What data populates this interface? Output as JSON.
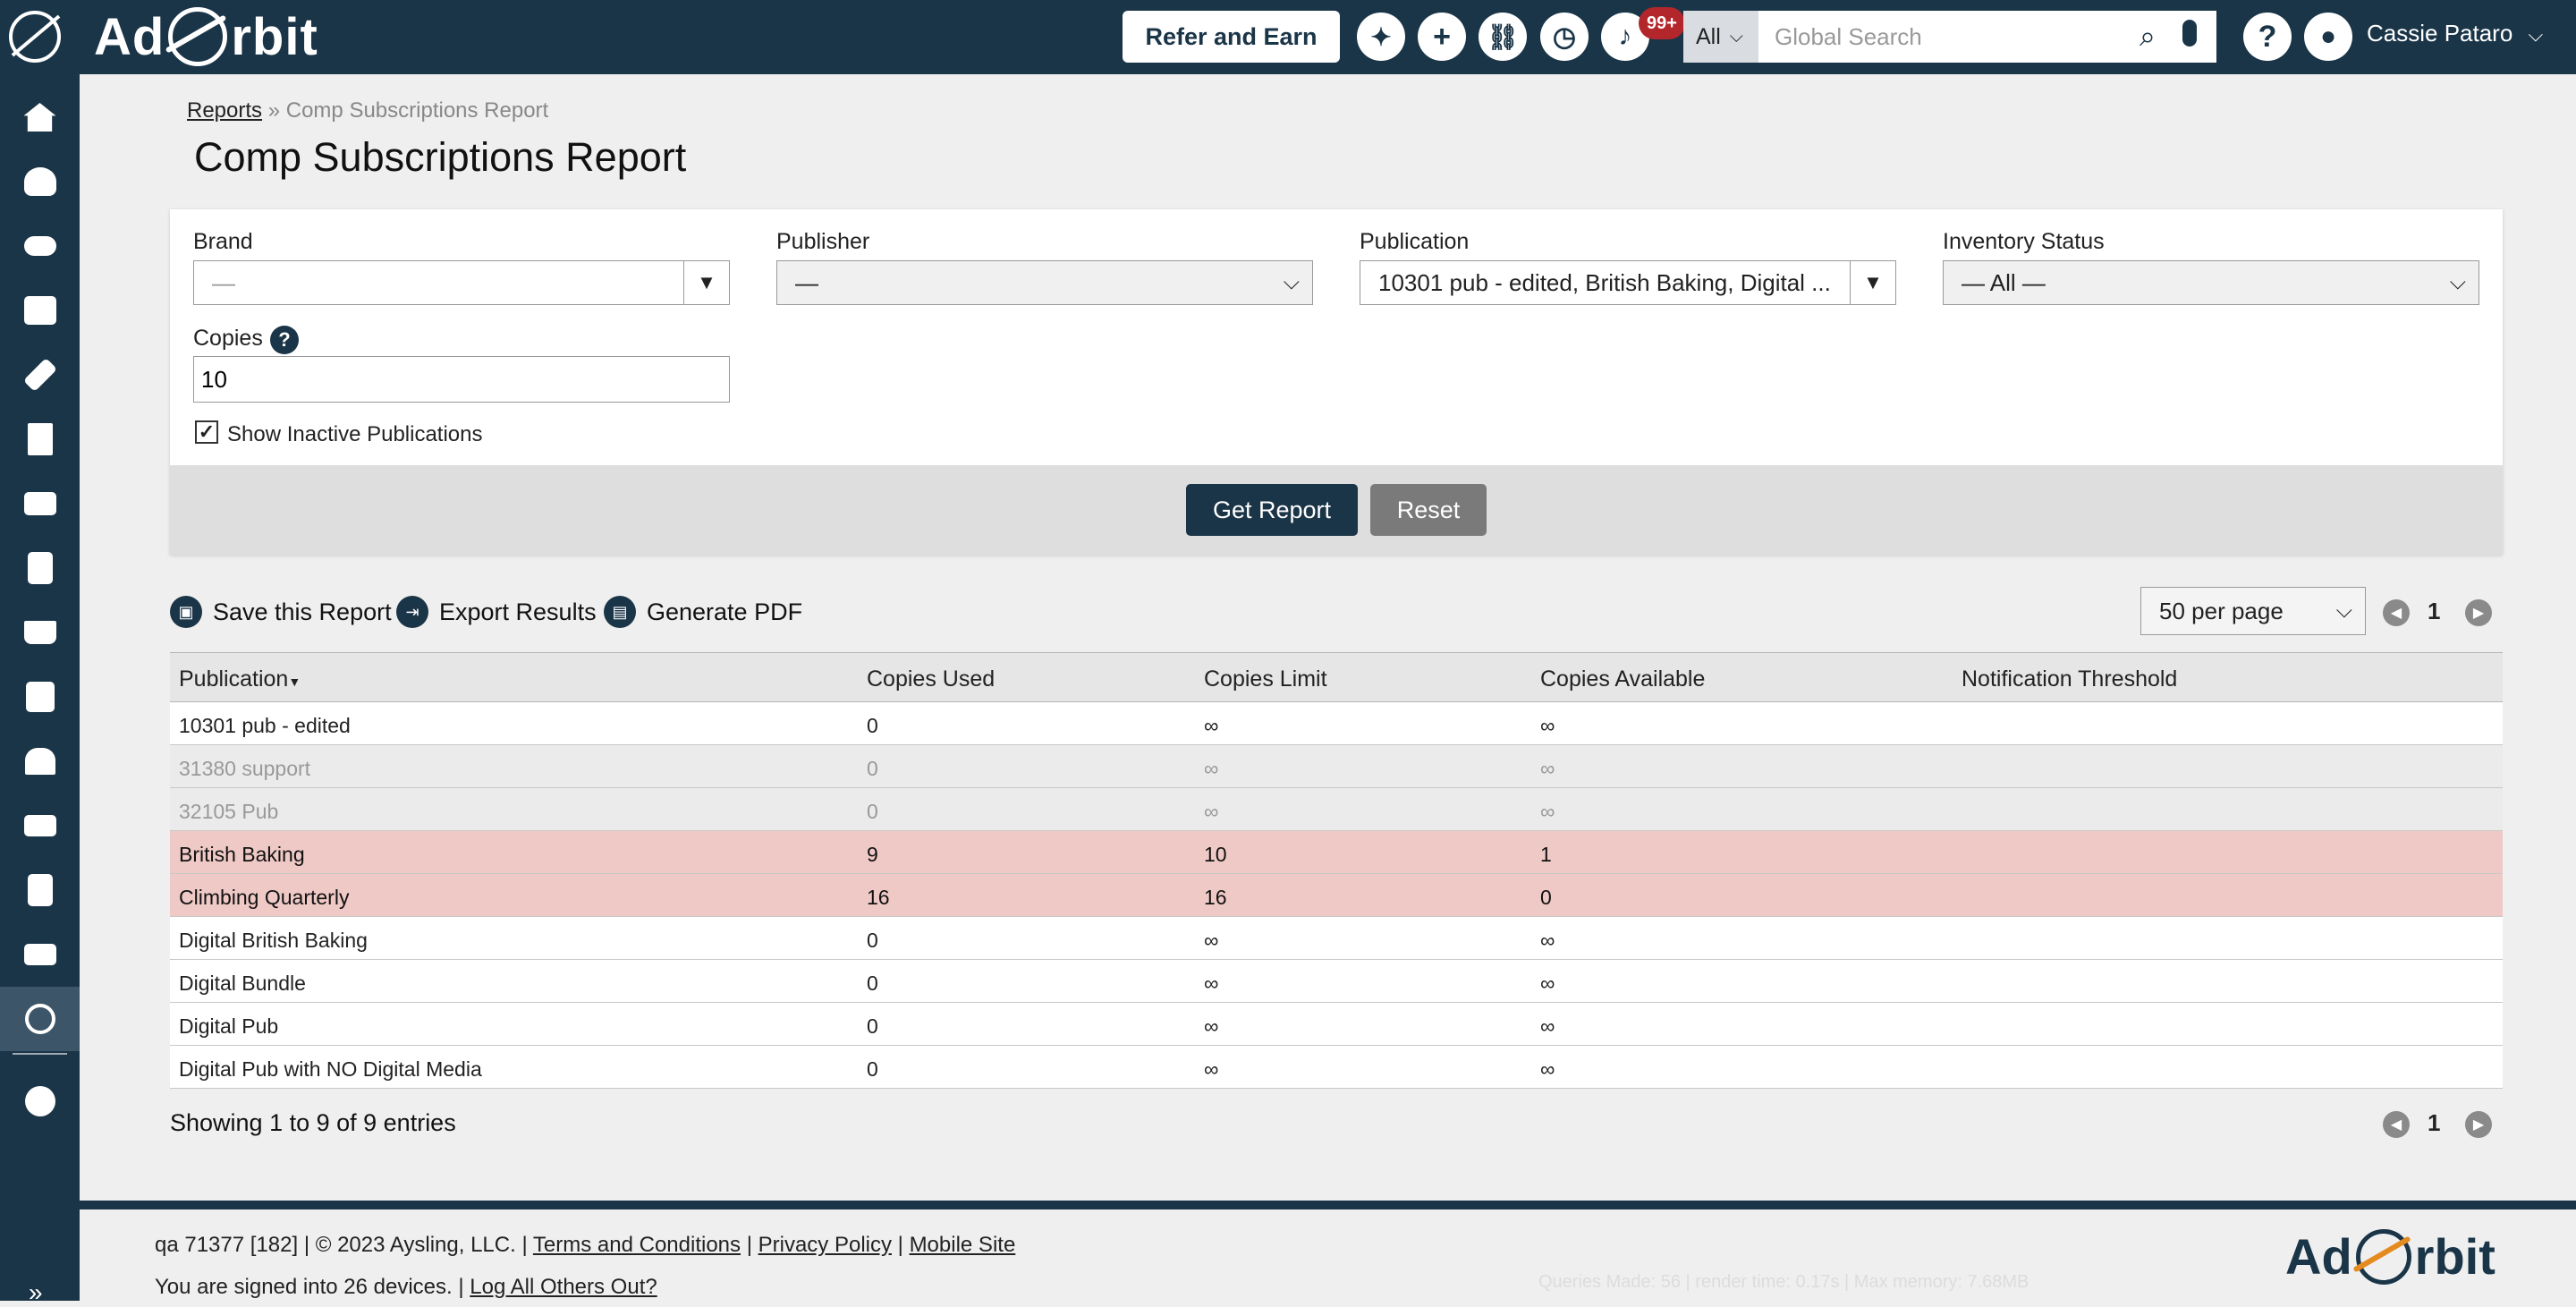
{
  "header": {
    "logo_text_left": "Ad",
    "logo_text_right": "rbit",
    "refer_label": "Refer and Earn",
    "notifications_badge": "99+",
    "search": {
      "scope": "All",
      "placeholder": "Global Search"
    },
    "user_name": "Cassie Pataro"
  },
  "sidebar": {
    "items": [
      "home-icon",
      "contacts-icon",
      "handshake-icon",
      "media-icon",
      "ticket-icon",
      "invoice-icon",
      "billing-icon",
      "tasks-icon",
      "cart-icon",
      "calendar-icon",
      "mailbox-icon",
      "delivery-icon",
      "w2-icon",
      "mail-icon",
      "subscriptions-icon"
    ],
    "active_index": 14,
    "settings": "gear-icon",
    "expand": "»"
  },
  "breadcrumb": {
    "root": "Reports",
    "separator": "»",
    "current": "Comp Subscriptions Report"
  },
  "page_title": "Comp Subscriptions Report",
  "filters": {
    "brand": {
      "label": "Brand",
      "value": "—"
    },
    "publisher": {
      "label": "Publisher",
      "value": "—"
    },
    "publication": {
      "label": "Publication",
      "value": "10301 pub - edited, British Baking, Digital ..."
    },
    "inventory_status": {
      "label": "Inventory Status",
      "value": "— All —"
    },
    "copies": {
      "label": "Copies",
      "value": "10"
    },
    "show_inactive": {
      "label": "Show Inactive Publications",
      "checked": true
    },
    "get_report": "Get Report",
    "reset": "Reset"
  },
  "actions": {
    "save": "Save this Report",
    "export": "Export Results",
    "pdf": "Generate PDF"
  },
  "pagination": {
    "per_page": "50 per page",
    "page": "1"
  },
  "table": {
    "columns": [
      "Publication",
      "Copies Used",
      "Copies Limit",
      "Copies Available",
      "Notification Threshold"
    ],
    "rows": [
      {
        "publication": "10301 pub - edited",
        "used": "0",
        "limit": "∞",
        "available": "∞",
        "threshold": "",
        "state": "normal"
      },
      {
        "publication": "31380 support",
        "used": "0",
        "limit": "∞",
        "available": "∞",
        "threshold": "",
        "state": "inactive"
      },
      {
        "publication": "32105 Pub",
        "used": "0",
        "limit": "∞",
        "available": "∞",
        "threshold": "",
        "state": "inactive"
      },
      {
        "publication": "British Baking",
        "used": "9",
        "limit": "10",
        "available": "1",
        "threshold": "",
        "state": "warn"
      },
      {
        "publication": "Climbing Quarterly",
        "used": "16",
        "limit": "16",
        "available": "0",
        "threshold": "",
        "state": "warn"
      },
      {
        "publication": "Digital British Baking",
        "used": "0",
        "limit": "∞",
        "available": "∞",
        "threshold": "",
        "state": "normal"
      },
      {
        "publication": "Digital Bundle",
        "used": "0",
        "limit": "∞",
        "available": "∞",
        "threshold": "",
        "state": "normal"
      },
      {
        "publication": "Digital Pub",
        "used": "0",
        "limit": "∞",
        "available": "∞",
        "threshold": "",
        "state": "normal"
      },
      {
        "publication": "Digital Pub with NO Digital Media",
        "used": "0",
        "limit": "∞",
        "available": "∞",
        "threshold": "",
        "state": "normal"
      }
    ],
    "showing": "Showing 1 to 9 of 9 entries"
  },
  "footer": {
    "build": "qa 71377 [182] | © 2023 Aysling, LLC. |",
    "terms": "Terms and Conditions",
    "privacy": "Privacy Policy",
    "mobile": "Mobile Site",
    "signed_in": "You are signed into 26 devices. |",
    "logout_others": "Log All Others Out?",
    "debug": "Queries Made: 56 | render time: 0.17s | Max memory: 7.68MB"
  },
  "colors": {
    "navy": "#1b3548",
    "warn_row": "#efc9c6",
    "badge": "#b3262b"
  }
}
